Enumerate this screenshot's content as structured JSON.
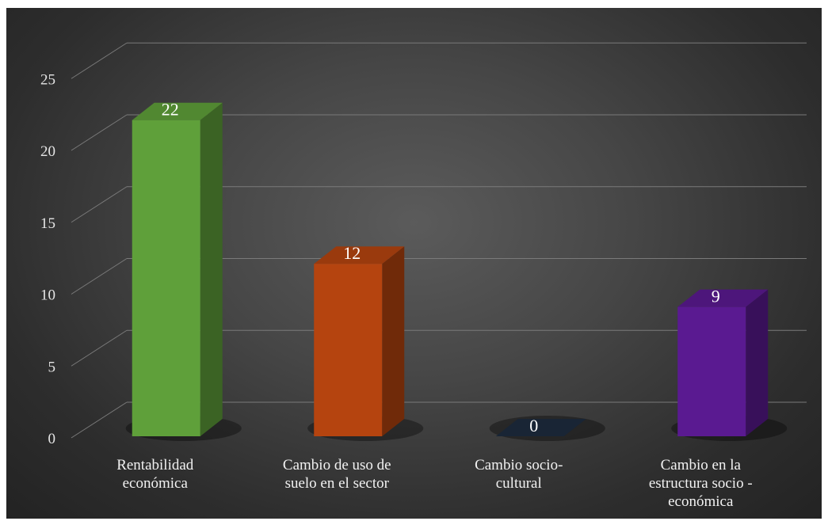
{
  "chart_data": {
    "type": "bar",
    "categories": [
      [
        "Rentabilidad",
        "económica"
      ],
      [
        "Cambio de uso de",
        "suelo en el sector"
      ],
      [
        "Cambio socio-",
        "cultural"
      ],
      [
        "Cambio en la",
        "estructura socio -",
        "económica"
      ]
    ],
    "values": [
      22,
      12,
      0,
      9
    ],
    "data_labels": [
      "22",
      "12",
      "0",
      "9"
    ],
    "colors": [
      "#5fa03a",
      "#b5440f",
      "#1d2b3e",
      "#5a1a91"
    ],
    "ylim": [
      0,
      25
    ],
    "yticks": [
      "0",
      "5",
      "10",
      "15",
      "20",
      "25"
    ],
    "grid": true,
    "title": "",
    "xlabel": "",
    "ylabel": "",
    "style": "3d-column"
  }
}
